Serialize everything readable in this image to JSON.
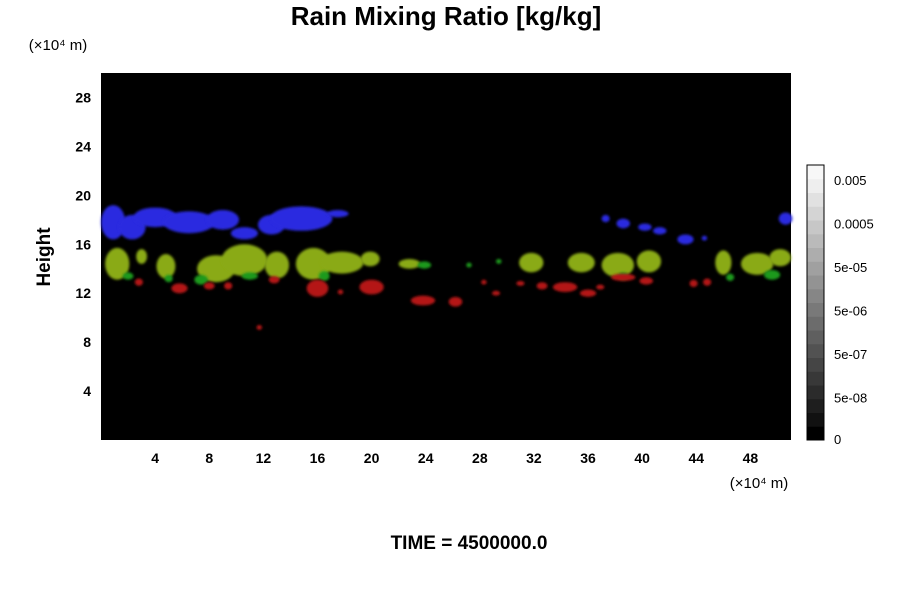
{
  "chart_data": {
    "type": "heatmap",
    "title": "Rain Mixing Ratio [kg/kg]",
    "ylabel": "Height",
    "y_unit_label": "(×10⁴ m)",
    "x_unit_label": "(×10⁴ m)",
    "footer": "TIME = 4500000.0",
    "x_ticks": [
      "4",
      "8",
      "12",
      "16",
      "20",
      "24",
      "28",
      "32",
      "36",
      "40",
      "44",
      "48"
    ],
    "y_ticks": [
      "4",
      "8",
      "12",
      "16",
      "20",
      "24",
      "28"
    ],
    "xlim": [
      0,
      51
    ],
    "ylim": [
      0,
      30
    ],
    "background": "#000000",
    "colorbar": {
      "labels": [
        "0.005",
        "0.0005",
        "5e-05",
        "5e-06",
        "5e-07",
        "5e-08",
        "0"
      ],
      "colors": [
        "#000000",
        "#111111",
        "#1e1e1e",
        "#2b2b2b",
        "#383838",
        "#454545",
        "#525252",
        "#5f5f5f",
        "#6c6c6c",
        "#797979",
        "#868686",
        "#939393",
        "#a0a0a0",
        "#adadad",
        "#bababa",
        "#c7c7c7",
        "#d4d4d4",
        "#e1e1e1",
        "#eeeeee",
        "#f7f7f7"
      ]
    },
    "series": [
      {
        "color": "#2a2ae0",
        "regions": [
          {
            "x": 0.9,
            "y": 17.8,
            "rx": 0.9,
            "ry": 1.4
          },
          {
            "x": 2.3,
            "y": 17.4,
            "rx": 1.0,
            "ry": 1.0
          },
          {
            "x": 4.0,
            "y": 18.2,
            "rx": 1.6,
            "ry": 0.8
          },
          {
            "x": 6.5,
            "y": 17.8,
            "rx": 1.9,
            "ry": 0.9
          },
          {
            "x": 9.0,
            "y": 18.0,
            "rx": 1.2,
            "ry": 0.8
          },
          {
            "x": 10.6,
            "y": 16.9,
            "rx": 1.0,
            "ry": 0.5
          },
          {
            "x": 12.6,
            "y": 17.6,
            "rx": 1.0,
            "ry": 0.8
          },
          {
            "x": 14.8,
            "y": 18.1,
            "rx": 2.3,
            "ry": 1.0
          },
          {
            "x": 17.5,
            "y": 18.5,
            "rx": 0.8,
            "ry": 0.3
          },
          {
            "x": 37.3,
            "y": 18.1,
            "rx": 0.3,
            "ry": 0.3
          },
          {
            "x": 38.6,
            "y": 17.7,
            "rx": 0.5,
            "ry": 0.4
          },
          {
            "x": 40.2,
            "y": 17.4,
            "rx": 0.5,
            "ry": 0.3
          },
          {
            "x": 41.3,
            "y": 17.1,
            "rx": 0.5,
            "ry": 0.3
          },
          {
            "x": 43.2,
            "y": 16.4,
            "rx": 0.6,
            "ry": 0.4
          },
          {
            "x": 44.6,
            "y": 16.5,
            "rx": 0.2,
            "ry": 0.2
          },
          {
            "x": 50.6,
            "y": 18.1,
            "rx": 0.5,
            "ry": 0.5
          }
        ]
      },
      {
        "color": "#8aaa14",
        "regions": [
          {
            "x": 1.2,
            "y": 14.4,
            "rx": 0.9,
            "ry": 1.3
          },
          {
            "x": 3.0,
            "y": 15.0,
            "rx": 0.4,
            "ry": 0.6
          },
          {
            "x": 4.8,
            "y": 14.2,
            "rx": 0.7,
            "ry": 1.0
          },
          {
            "x": 8.5,
            "y": 14.0,
            "rx": 1.4,
            "ry": 1.1
          },
          {
            "x": 10.6,
            "y": 14.7,
            "rx": 1.7,
            "ry": 1.3
          },
          {
            "x": 13.0,
            "y": 14.3,
            "rx": 0.9,
            "ry": 1.1
          },
          {
            "x": 15.7,
            "y": 14.4,
            "rx": 1.3,
            "ry": 1.3
          },
          {
            "x": 17.8,
            "y": 14.5,
            "rx": 1.6,
            "ry": 0.9
          },
          {
            "x": 19.9,
            "y": 14.8,
            "rx": 0.7,
            "ry": 0.6
          },
          {
            "x": 22.8,
            "y": 14.4,
            "rx": 0.8,
            "ry": 0.4
          },
          {
            "x": 31.8,
            "y": 14.5,
            "rx": 0.9,
            "ry": 0.8
          },
          {
            "x": 35.5,
            "y": 14.5,
            "rx": 1.0,
            "ry": 0.8
          },
          {
            "x": 38.2,
            "y": 14.3,
            "rx": 1.2,
            "ry": 1.0
          },
          {
            "x": 40.5,
            "y": 14.6,
            "rx": 0.9,
            "ry": 0.9
          },
          {
            "x": 46.0,
            "y": 14.5,
            "rx": 0.6,
            "ry": 1.0
          },
          {
            "x": 48.5,
            "y": 14.4,
            "rx": 1.2,
            "ry": 0.9
          },
          {
            "x": 50.2,
            "y": 14.9,
            "rx": 0.8,
            "ry": 0.7
          }
        ]
      },
      {
        "color": "#1b9a1b",
        "regions": [
          {
            "x": 2.0,
            "y": 13.4,
            "rx": 0.4,
            "ry": 0.3
          },
          {
            "x": 5.0,
            "y": 13.2,
            "rx": 0.3,
            "ry": 0.3
          },
          {
            "x": 7.4,
            "y": 13.1,
            "rx": 0.5,
            "ry": 0.4
          },
          {
            "x": 11.0,
            "y": 13.4,
            "rx": 0.6,
            "ry": 0.3
          },
          {
            "x": 16.5,
            "y": 13.4,
            "rx": 0.4,
            "ry": 0.4
          },
          {
            "x": 23.9,
            "y": 14.3,
            "rx": 0.5,
            "ry": 0.3
          },
          {
            "x": 27.2,
            "y": 14.3,
            "rx": 0.2,
            "ry": 0.2
          },
          {
            "x": 29.4,
            "y": 14.6,
            "rx": 0.2,
            "ry": 0.2
          },
          {
            "x": 38.6,
            "y": 13.4,
            "rx": 0.4,
            "ry": 0.3
          },
          {
            "x": 46.5,
            "y": 13.3,
            "rx": 0.3,
            "ry": 0.3
          },
          {
            "x": 49.6,
            "y": 13.5,
            "rx": 0.6,
            "ry": 0.4
          }
        ]
      },
      {
        "color": "#b41818",
        "regions": [
          {
            "x": 2.8,
            "y": 12.9,
            "rx": 0.3,
            "ry": 0.3
          },
          {
            "x": 5.8,
            "y": 12.4,
            "rx": 0.6,
            "ry": 0.4
          },
          {
            "x": 8.0,
            "y": 12.6,
            "rx": 0.4,
            "ry": 0.3
          },
          {
            "x": 9.4,
            "y": 12.6,
            "rx": 0.3,
            "ry": 0.3
          },
          {
            "x": 12.8,
            "y": 13.1,
            "rx": 0.4,
            "ry": 0.3
          },
          {
            "x": 16.0,
            "y": 12.4,
            "rx": 0.8,
            "ry": 0.7
          },
          {
            "x": 17.7,
            "y": 12.1,
            "rx": 0.2,
            "ry": 0.2
          },
          {
            "x": 20.0,
            "y": 12.5,
            "rx": 0.9,
            "ry": 0.6
          },
          {
            "x": 23.8,
            "y": 11.4,
            "rx": 0.9,
            "ry": 0.4
          },
          {
            "x": 26.2,
            "y": 11.3,
            "rx": 0.5,
            "ry": 0.4
          },
          {
            "x": 28.3,
            "y": 12.9,
            "rx": 0.2,
            "ry": 0.2
          },
          {
            "x": 29.2,
            "y": 12.0,
            "rx": 0.3,
            "ry": 0.2
          },
          {
            "x": 31.0,
            "y": 12.8,
            "rx": 0.3,
            "ry": 0.2
          },
          {
            "x": 32.6,
            "y": 12.6,
            "rx": 0.4,
            "ry": 0.3
          },
          {
            "x": 34.3,
            "y": 12.5,
            "rx": 0.9,
            "ry": 0.4
          },
          {
            "x": 36.0,
            "y": 12.0,
            "rx": 0.6,
            "ry": 0.3
          },
          {
            "x": 36.9,
            "y": 12.5,
            "rx": 0.3,
            "ry": 0.2
          },
          {
            "x": 38.6,
            "y": 13.3,
            "rx": 0.9,
            "ry": 0.3
          },
          {
            "x": 40.3,
            "y": 13.0,
            "rx": 0.5,
            "ry": 0.3
          },
          {
            "x": 43.8,
            "y": 12.8,
            "rx": 0.3,
            "ry": 0.3
          },
          {
            "x": 44.8,
            "y": 12.9,
            "rx": 0.3,
            "ry": 0.3
          },
          {
            "x": 11.7,
            "y": 9.2,
            "rx": 0.2,
            "ry": 0.2
          }
        ]
      }
    ]
  }
}
